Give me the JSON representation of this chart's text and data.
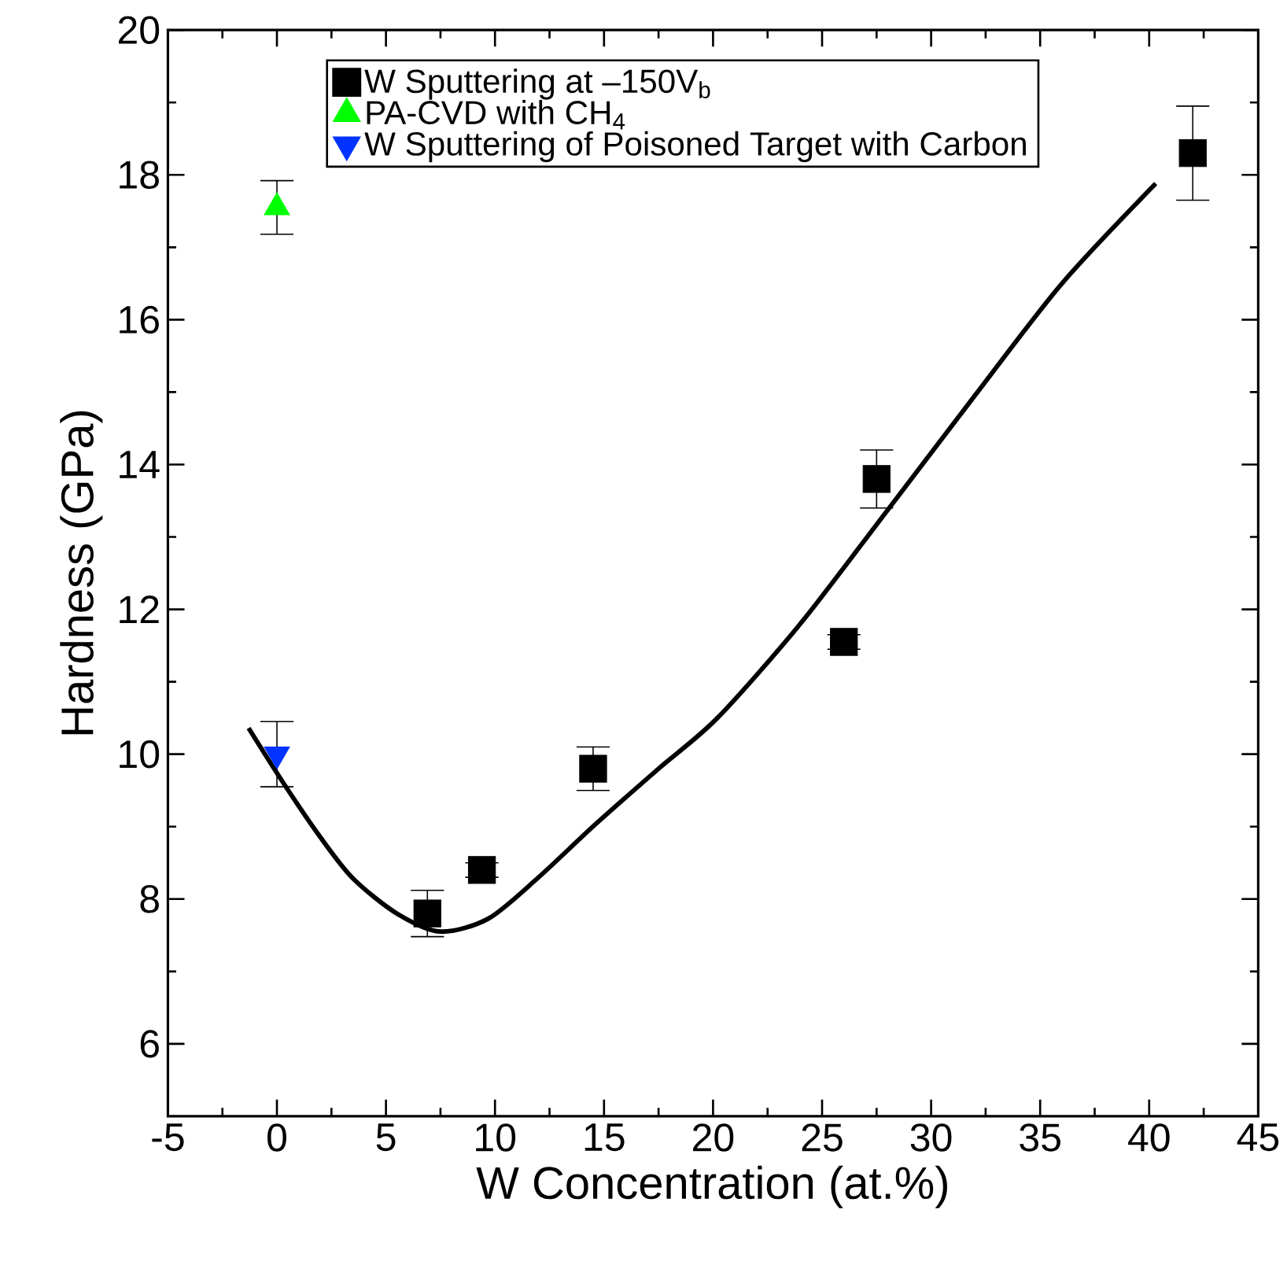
{
  "chart_data": {
    "type": "scatter",
    "xlabel": "W Concentration (at.%)",
    "ylabel": "Hardness (GPa)",
    "xlim": [
      -5,
      45
    ],
    "ylim": [
      5,
      20
    ],
    "xticks": [
      -5,
      0,
      5,
      10,
      15,
      20,
      25,
      30,
      35,
      40,
      45
    ],
    "yticks": [
      6,
      8,
      10,
      12,
      14,
      16,
      18,
      20
    ],
    "legend": "top right",
    "grid": false,
    "series": [
      {
        "name": "W Sputtering at –150V$_{b}$",
        "marker": "square",
        "color": "#000000",
        "x": [
          6.9,
          9.4,
          14.5,
          26,
          27.5,
          42
        ],
        "values": [
          7.8,
          8.4,
          9.8,
          11.55,
          13.8,
          18.3
        ],
        "errors": [
          0.32,
          0.1,
          0.3,
          0.1,
          0.4,
          0.65
        ]
      },
      {
        "name": "PA-CVD with CH$_{4}$",
        "marker": "triangle",
        "color": "#00ff00",
        "x": [
          0
        ],
        "values": [
          17.55
        ],
        "errors": [
          0.37
        ]
      },
      {
        "name": "W Sputtering of Poisoned Target with Carbon",
        "marker": "triangle down",
        "color": "#0033ff",
        "x": [
          0
        ],
        "values": [
          10.0
        ],
        "errors": [
          0.45
        ]
      },
      {
        "type": "line",
        "marker": "none",
        "color": "#000000",
        "x": [
          -1.3,
          0.3,
          2,
          3.5,
          5.5,
          7.5,
          9.7,
          12,
          14.6,
          17.5,
          20.2,
          24,
          27.9,
          32,
          36,
          40.3
        ],
        "values": [
          10.36,
          9.6,
          8.85,
          8.28,
          7.8,
          7.55,
          7.73,
          8.3,
          9.03,
          9.8,
          10.5,
          11.8,
          13.33,
          14.95,
          16.5,
          17.88
        ]
      }
    ]
  }
}
